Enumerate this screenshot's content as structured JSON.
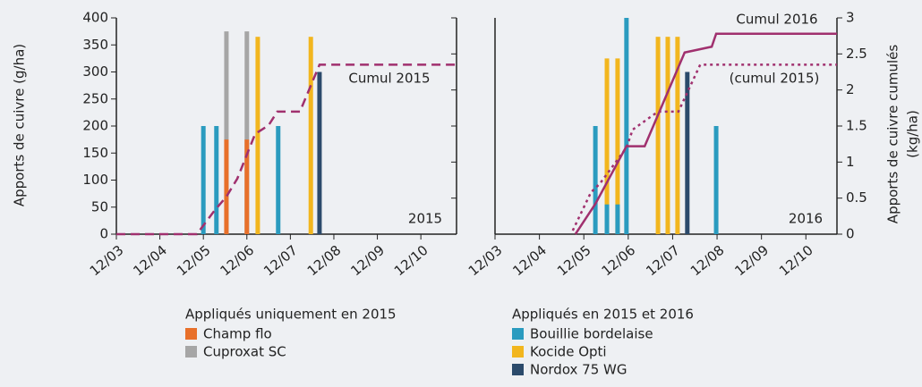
{
  "chart_data": [
    {
      "type": "bar",
      "annotation": "2015",
      "ylabel": "Apports de cuivre (g/ha)",
      "xlim": [
        3,
        10.82
      ],
      "xticks": [
        {
          "value": 3,
          "label": "12/03"
        },
        {
          "value": 4,
          "label": "12/04"
        },
        {
          "value": 5,
          "label": "12/05"
        },
        {
          "value": 6,
          "label": "12/06"
        },
        {
          "value": 7,
          "label": "12/07"
        },
        {
          "value": 8,
          "label": "12/08"
        },
        {
          "value": 9,
          "label": "12/09"
        },
        {
          "value": 10,
          "label": "12/10"
        }
      ],
      "ylim": [
        0,
        400
      ],
      "yticks": [
        0,
        50,
        100,
        150,
        200,
        250,
        300,
        350,
        400
      ],
      "ytick_labels": true,
      "y2lim": [
        0,
        3
      ],
      "y2ticks": [
        0,
        0.5,
        1,
        1.5,
        2,
        2.5,
        3
      ],
      "y2tick_labels": false,
      "series": [
        {
          "name": "Cuproxat SC",
          "color": "#a6a6a6",
          "x": [
            5.53,
            6.0
          ],
          "values": [
            375,
            375
          ]
        },
        {
          "name": "Champ flo",
          "color": "#e8702a",
          "x": [
            5.53,
            6.0
          ],
          "values": [
            175,
            175
          ]
        },
        {
          "name": "Bouillie bordelaise",
          "color": "#2a9bbf",
          "x": [
            5.0,
            5.3,
            6.72
          ],
          "values": [
            200,
            200,
            200
          ]
        },
        {
          "name": "Kocide Opti",
          "color": "#f2b61e",
          "x": [
            6.25,
            7.47
          ],
          "values": [
            365,
            365
          ]
        },
        {
          "name": "Nordox 75 WG",
          "color": "#2b4a6b",
          "x": [
            7.67
          ],
          "values": [
            300
          ]
        },
        {
          "name": "Cumul 2015",
          "type": "line",
          "axis": "y2",
          "dash": "dashed",
          "color": "#a0306e",
          "x": [
            3,
            4.85,
            5.26,
            5.53,
            5.78,
            6.19,
            6.5,
            6.7,
            7.22,
            7.67,
            10.82
          ],
          "values": [
            0,
            0,
            0.33,
            0.52,
            0.77,
            1.39,
            1.51,
            1.7,
            1.7,
            2.35,
            2.35
          ]
        }
      ]
    },
    {
      "type": "bar",
      "annotation": "2016",
      "y2label": [
        "Apports de cuivre cumulés",
        "(kg/ha)"
      ],
      "xlim": [
        3,
        10.7
      ],
      "xticks": [
        {
          "value": 3,
          "label": "12/03"
        },
        {
          "value": 4,
          "label": "12/04"
        },
        {
          "value": 5,
          "label": "12/05"
        },
        {
          "value": 6,
          "label": "12/06"
        },
        {
          "value": 7,
          "label": "12/07"
        },
        {
          "value": 8,
          "label": "12/08"
        },
        {
          "value": 9,
          "label": "12/09"
        },
        {
          "value": 10,
          "label": "12/10"
        }
      ],
      "ylim": [
        0,
        400
      ],
      "yticks": [
        0,
        50,
        100,
        150,
        200,
        250,
        300,
        350,
        400
      ],
      "ytick_labels": false,
      "y2lim": [
        0,
        3
      ],
      "y2ticks": [
        0,
        0.5,
        1,
        1.5,
        2,
        2.5,
        3
      ],
      "y2tick_labels": true,
      "series": [
        {
          "name": "Kocide Opti",
          "color": "#f2b61e",
          "x": [
            5.52,
            5.76,
            6.67,
            6.89,
            7.11
          ],
          "values": [
            325,
            325,
            365,
            365,
            365
          ]
        },
        {
          "name": "Bouillie bordelaise",
          "color": "#2a9bbf",
          "x": [
            5.26,
            5.52,
            5.76,
            5.96,
            7.98
          ],
          "values": [
            200,
            55,
            55,
            400,
            200
          ]
        },
        {
          "name": "Nordox 75 WG",
          "color": "#2b4a6b",
          "x": [
            7.33
          ],
          "values": [
            300
          ]
        },
        {
          "name": "(cumul 2015)",
          "type": "line",
          "axis": "y2",
          "dash": "dotted",
          "color": "#a0306e",
          "x": [
            4.75,
            5.16,
            5.36,
            5.96,
            6.1,
            6.67,
            7.13,
            7.62,
            10.7
          ],
          "values": [
            0.05,
            0.58,
            0.7,
            1.2,
            1.45,
            1.7,
            1.7,
            2.35,
            2.35
          ]
        },
        {
          "name": "Cumul 2016",
          "type": "line",
          "axis": "y2",
          "dash": "solid",
          "color": "#a0306e",
          "x": [
            4.81,
            5.26,
            5.96,
            6.37,
            7.27,
            7.88,
            7.98,
            10.7
          ],
          "values": [
            0,
            0.42,
            1.22,
            1.22,
            2.52,
            2.6,
            2.78,
            2.78
          ]
        }
      ]
    }
  ],
  "legend": [
    {
      "title": "Appliqués uniquement en 2015",
      "items": [
        {
          "name": "Champ flo",
          "color": "#e8702a"
        },
        {
          "name": "Cuproxat SC",
          "color": "#a6a6a6"
        }
      ]
    },
    {
      "title": "Appliqués en 2015 et 2016",
      "items": [
        {
          "name": "Bouillie bordelaise",
          "color": "#2a9bbf"
        },
        {
          "name": "Kocide Opti",
          "color": "#f2b61e"
        },
        {
          "name": "Nordox 75 WG",
          "color": "#2b4a6b"
        }
      ]
    }
  ]
}
